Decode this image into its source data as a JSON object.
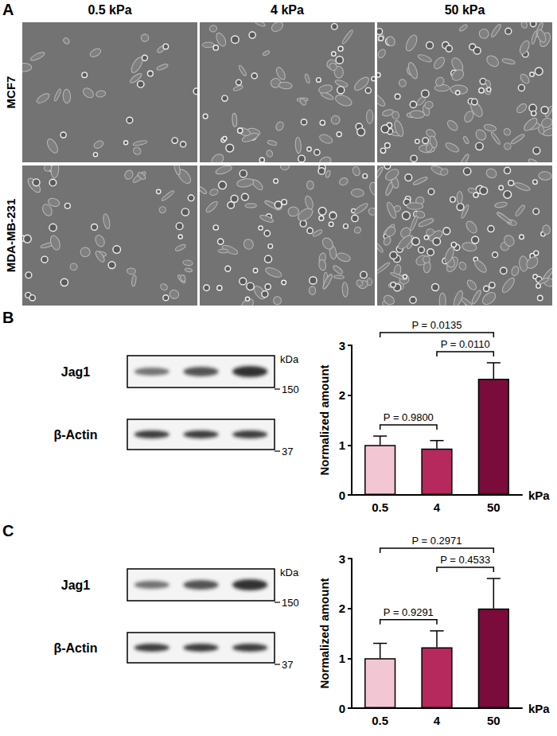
{
  "panel_a": {
    "panel": "A",
    "columns": [
      "0.5 kPa",
      "4 kPa",
      "50 kPa"
    ],
    "rows": [
      "MCF7",
      "MDA-MB-231"
    ]
  },
  "blots": [
    {
      "panel": "B",
      "rows": [
        "Jag1",
        "β-Actin"
      ],
      "unit": "kDa",
      "markers": [
        150,
        37
      ]
    },
    {
      "panel": "C",
      "rows": [
        "Jag1",
        "β-Actin"
      ],
      "unit": "kDa",
      "markers": [
        150,
        37
      ]
    }
  ],
  "chart_data": [
    {
      "type": "bar",
      "panel": "B",
      "categories": [
        "0.5",
        "4",
        "50"
      ],
      "values": [
        1.0,
        0.93,
        2.33
      ],
      "errors": [
        0.18,
        0.16,
        0.32
      ],
      "colors": [
        "#f3c6d3",
        "#b5295d",
        "#7a0b3a"
      ],
      "x_label": "kPa",
      "y_label": "Normalized amount",
      "ylim": [
        0,
        3
      ],
      "yticks": [
        0,
        1,
        2,
        3
      ],
      "grid": false,
      "comparisons": [
        {
          "from": "0.5",
          "to": "4",
          "label": "P = 0.9800"
        },
        {
          "from": "4",
          "to": "50",
          "label": "P = 0.0110"
        },
        {
          "from": "0.5",
          "to": "50",
          "label": "P = 0.0135"
        }
      ]
    },
    {
      "type": "bar",
      "panel": "C",
      "categories": [
        "0.5",
        "4",
        "50"
      ],
      "values": [
        1.0,
        1.22,
        2.0
      ],
      "errors": [
        0.3,
        0.33,
        0.6
      ],
      "colors": [
        "#f3c6d3",
        "#b5295d",
        "#7a0b3a"
      ],
      "x_label": "kPa",
      "y_label": "Normalized amount",
      "ylim": [
        0,
        3
      ],
      "yticks": [
        0,
        1,
        2,
        3
      ],
      "grid": false,
      "comparisons": [
        {
          "from": "0.5",
          "to": "4",
          "label": "P = 0.9291"
        },
        {
          "from": "4",
          "to": "50",
          "label": "P = 0.4533"
        },
        {
          "from": "0.5",
          "to": "50",
          "label": "P = 0.2971"
        }
      ]
    }
  ]
}
